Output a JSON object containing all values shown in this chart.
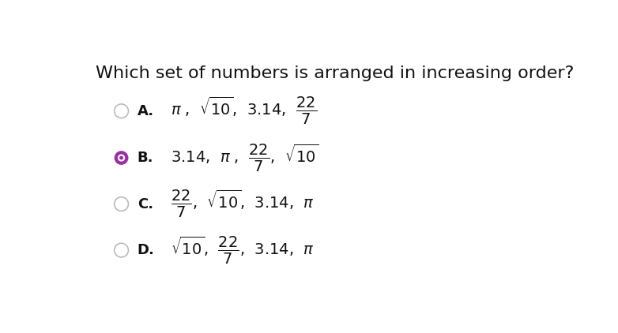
{
  "title": "Which set of numbers is arranged in increasing order?",
  "title_fontsize": 16,
  "background_color": "#ffffff",
  "options": [
    {
      "letter": "A.",
      "row": 0,
      "selected": false,
      "text": "$\\pi$ ,  $\\sqrt{10}$,  3.14,  $\\dfrac{22}{7}$"
    },
    {
      "letter": "B.",
      "row": 1,
      "selected": true,
      "text": "3.14,  $\\pi$ ,  $\\dfrac{22}{7}$,  $\\sqrt{10}$"
    },
    {
      "letter": "C.",
      "row": 2,
      "selected": false,
      "text": "$\\dfrac{22}{7}$,  $\\sqrt{10}$,  3.14,  $\\pi$"
    },
    {
      "letter": "D.",
      "row": 3,
      "selected": false,
      "text": "$\\sqrt{10}$,  $\\dfrac{22}{7}$,  3.14,  $\\pi$"
    }
  ],
  "selected_color": "#9b30a0",
  "unselected_edge_color": "#bbbbbb",
  "letter_fontsize": 13,
  "option_fontsize": 14,
  "fig_width": 7.82,
  "fig_height": 4.22,
  "dpi": 100
}
